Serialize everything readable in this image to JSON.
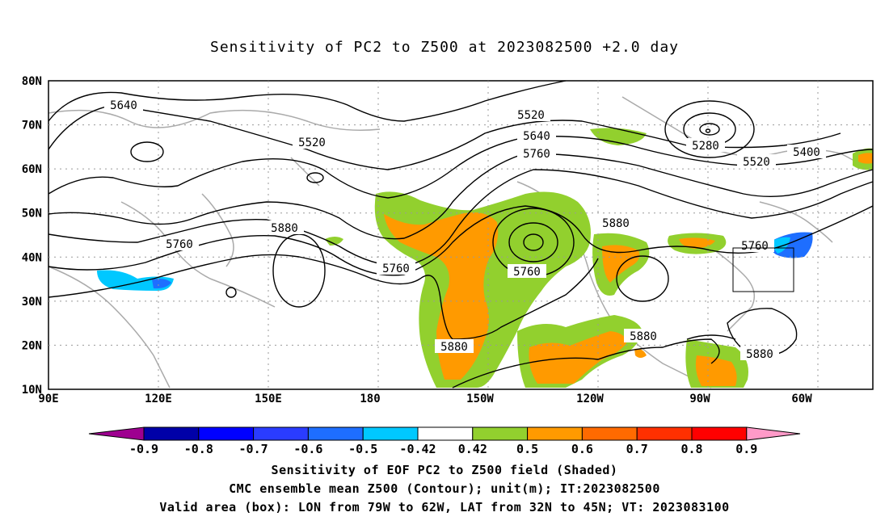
{
  "title": "Sensitivity of PC2 to Z500 at 2023082500 +2.0 day",
  "axes": {
    "lat_labels": [
      "80N",
      "70N",
      "60N",
      "50N",
      "40N",
      "30N",
      "20N",
      "10N"
    ],
    "lon_labels": [
      "90E",
      "120E",
      "150E",
      "180",
      "150W",
      "120W",
      "90W",
      "60W"
    ]
  },
  "contour_labels": [
    "5640",
    "5520",
    "5520",
    "5640",
    "5760",
    "5280",
    "5400",
    "5520",
    "5880",
    "5760",
    "5760",
    "5880",
    "5760",
    "5760",
    "5880",
    "5880",
    "5880"
  ],
  "colorbar": {
    "labels": [
      "-0.9",
      "-0.8",
      "-0.7",
      "-0.6",
      "-0.5",
      "-0.42",
      "0.42",
      "0.5",
      "0.6",
      "0.7",
      "0.8",
      "0.9"
    ],
    "colors": [
      "#9e0090",
      "#0000a8",
      "#0000ff",
      "#2a3cff",
      "#1e6eff",
      "#00c8ff",
      "#ffffff",
      "#92d02e",
      "#ff9a00",
      "#ff6a00",
      "#ff3000",
      "#ff0000",
      "#ff9ac8"
    ]
  },
  "valid_box": {
    "lon_from": "79W",
    "lon_to": "62W",
    "lat_from": "32N",
    "lat_to": "45N"
  },
  "footer": {
    "line1": "Sensitivity of EOF PC2 to Z500 field (Shaded)",
    "line2": "CMC ensemble mean Z500 (Contour); unit(m); IT:2023082500",
    "line3": "Valid area (box): LON from 79W to 62W, LAT from 32N to 45N; VT: 2023083100"
  }
}
